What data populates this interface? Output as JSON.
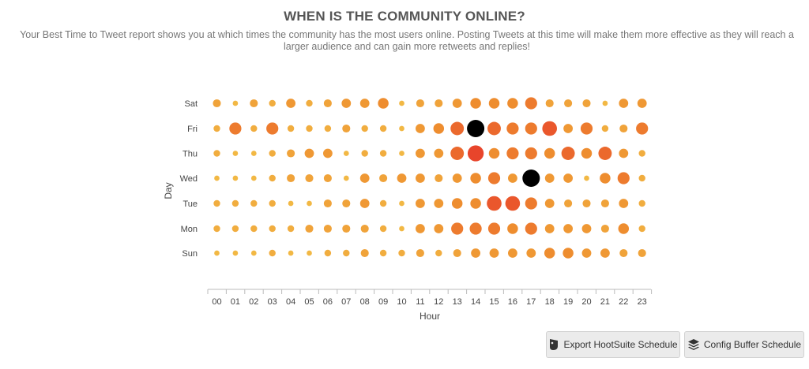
{
  "header": {
    "title": "WHEN IS THE COMMUNITY ONLINE?",
    "subtitle": "Your Best Time to Tweet report shows you at which times the community has the most users online. Posting Tweets at this time will make them more effective as they will reach a larger audience and can gain more retweets and replies!"
  },
  "buttons": {
    "hootsuite_label": "Export HootSuite Schedule",
    "buffer_label": "Config Buffer Schedule"
  },
  "icons": {
    "hootsuite": "owl-icon",
    "buffer": "layers-icon"
  },
  "colors": {
    "low": "#f2b844",
    "mid": "#ee8d2f",
    "high": "#e8452b",
    "peak": "#000000"
  },
  "chart_data": {
    "type": "scatter",
    "xlabel": "Hour",
    "ylabel": "Day",
    "x_categories": [
      "00",
      "01",
      "02",
      "03",
      "04",
      "05",
      "06",
      "07",
      "08",
      "09",
      "10",
      "11",
      "12",
      "13",
      "14",
      "15",
      "16",
      "17",
      "18",
      "19",
      "20",
      "21",
      "22",
      "23"
    ],
    "y_categories": [
      "Sun",
      "Mon",
      "Tue",
      "Wed",
      "Thu",
      "Fri",
      "Sat"
    ],
    "note_values": "relative activity level 0-10 per day/hour; 10 = peak (black)",
    "series": [
      {
        "day": "Sat",
        "values": [
          3,
          1,
          3,
          2,
          4,
          2,
          3,
          4,
          4,
          5,
          1,
          3,
          3,
          4,
          5,
          5,
          5,
          6,
          3,
          3,
          3,
          1,
          4,
          4
        ]
      },
      {
        "day": "Fri",
        "values": [
          2,
          6,
          2,
          6,
          2,
          2,
          2,
          3,
          2,
          2,
          1,
          4,
          5,
          7,
          10,
          7,
          6,
          6,
          8,
          4,
          6,
          2,
          3,
          6
        ]
      },
      {
        "day": "Thu",
        "values": [
          2,
          1,
          1,
          2,
          3,
          4,
          4,
          1,
          2,
          2,
          1,
          4,
          4,
          7,
          9,
          5,
          6,
          6,
          5,
          7,
          5,
          7,
          4,
          2
        ]
      },
      {
        "day": "Wed",
        "values": [
          1,
          1,
          1,
          2,
          3,
          3,
          3,
          1,
          4,
          3,
          4,
          4,
          3,
          4,
          5,
          6,
          4,
          10,
          4,
          4,
          1,
          5,
          6,
          2
        ]
      },
      {
        "day": "Tue",
        "values": [
          2,
          2,
          2,
          2,
          1,
          1,
          3,
          3,
          4,
          2,
          1,
          4,
          4,
          5,
          5,
          8,
          8,
          6,
          4,
          3,
          3,
          3,
          4,
          2
        ]
      },
      {
        "day": "Mon",
        "values": [
          2,
          2,
          2,
          2,
          2,
          3,
          3,
          3,
          3,
          2,
          1,
          4,
          4,
          6,
          6,
          6,
          5,
          6,
          4,
          4,
          4,
          3,
          5,
          2
        ]
      },
      {
        "day": "Sun",
        "values": [
          1,
          1,
          1,
          2,
          1,
          1,
          2,
          2,
          3,
          2,
          2,
          3,
          2,
          3,
          4,
          4,
          4,
          4,
          5,
          5,
          4,
          4,
          3,
          3
        ]
      }
    ]
  }
}
